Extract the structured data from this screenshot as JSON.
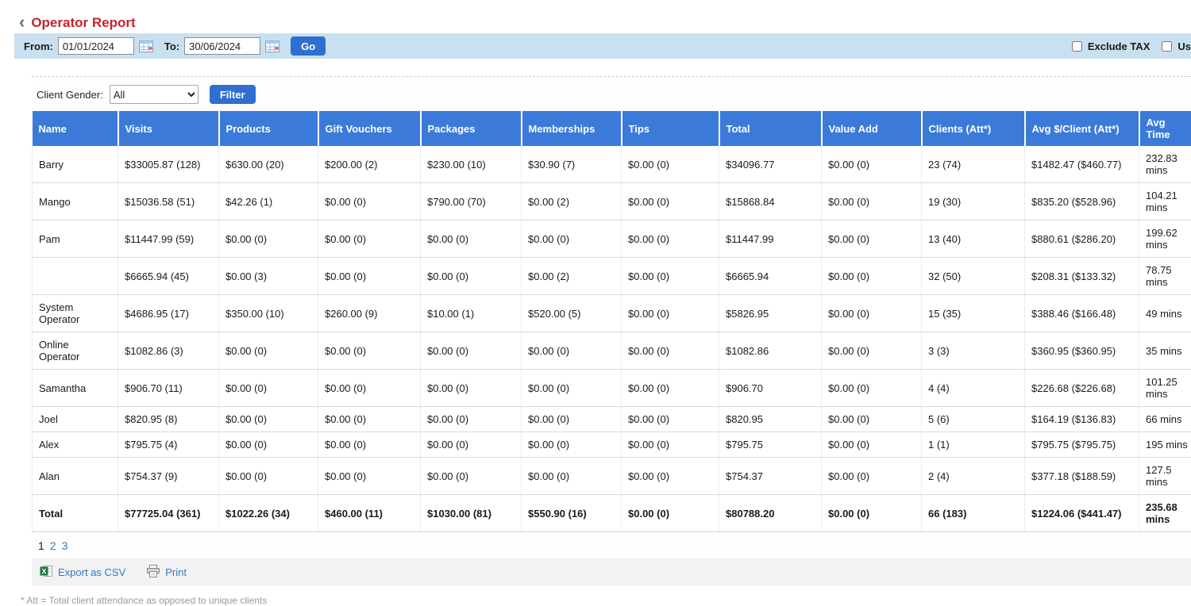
{
  "page": {
    "title": "Operator Report",
    "back_glyph": "‹"
  },
  "toolbar": {
    "from_label": "From:",
    "from_value": "01/01/2024",
    "to_label": "To:",
    "to_value": "30/06/2024",
    "go_label": "Go",
    "exclude_tax_label": "Exclude TAX",
    "partial_checkbox_label": "Us"
  },
  "filter": {
    "client_gender_label": "Client Gender:",
    "client_gender_value": "All",
    "filter_label": "Filter"
  },
  "table": {
    "columns": [
      "Name",
      "Visits",
      "Products",
      "Gift Vouchers",
      "Packages",
      "Memberships",
      "Tips",
      "Total",
      "Value Add",
      "Clients (Att*)",
      "Avg $/Client (Att*)",
      "Avg Time"
    ],
    "rows": [
      [
        "Barry",
        "$33005.87 (128)",
        "$630.00 (20)",
        "$200.00 (2)",
        "$230.00 (10)",
        "$30.90 (7)",
        "$0.00 (0)",
        "$34096.77",
        "$0.00 (0)",
        "23 (74)",
        "$1482.47 ($460.77)",
        "232.83 mins"
      ],
      [
        "Mango",
        "$15036.58 (51)",
        "$42.26 (1)",
        "$0.00 (0)",
        "$790.00 (70)",
        "$0.00 (2)",
        "$0.00 (0)",
        "$15868.84",
        "$0.00 (0)",
        "19 (30)",
        "$835.20 ($528.96)",
        "104.21 mins"
      ],
      [
        "Pam",
        "$11447.99 (59)",
        "$0.00 (0)",
        "$0.00 (0)",
        "$0.00 (0)",
        "$0.00 (0)",
        "$0.00 (0)",
        "$11447.99",
        "$0.00 (0)",
        "13 (40)",
        "$880.61 ($286.20)",
        "199.62 mins"
      ],
      [
        "",
        "$6665.94 (45)",
        "$0.00 (3)",
        "$0.00 (0)",
        "$0.00 (0)",
        "$0.00 (2)",
        "$0.00 (0)",
        "$6665.94",
        "$0.00 (0)",
        "32 (50)",
        "$208.31 ($133.32)",
        "78.75 mins"
      ],
      [
        "System Operator",
        "$4686.95 (17)",
        "$350.00 (10)",
        "$260.00 (9)",
        "$10.00 (1)",
        "$520.00 (5)",
        "$0.00 (0)",
        "$5826.95",
        "$0.00 (0)",
        "15 (35)",
        "$388.46 ($166.48)",
        "49 mins"
      ],
      [
        "Online Operator",
        "$1082.86 (3)",
        "$0.00 (0)",
        "$0.00 (0)",
        "$0.00 (0)",
        "$0.00 (0)",
        "$0.00 (0)",
        "$1082.86",
        "$0.00 (0)",
        "3 (3)",
        "$360.95 ($360.95)",
        "35 mins"
      ],
      [
        "Samantha",
        "$906.70 (11)",
        "$0.00 (0)",
        "$0.00 (0)",
        "$0.00 (0)",
        "$0.00 (0)",
        "$0.00 (0)",
        "$906.70",
        "$0.00 (0)",
        "4 (4)",
        "$226.68 ($226.68)",
        "101.25 mins"
      ],
      [
        "Joel",
        "$820.95 (8)",
        "$0.00 (0)",
        "$0.00 (0)",
        "$0.00 (0)",
        "$0.00 (0)",
        "$0.00 (0)",
        "$820.95",
        "$0.00 (0)",
        "5 (6)",
        "$164.19 ($136.83)",
        "66 mins"
      ],
      [
        "Alex",
        "$795.75 (4)",
        "$0.00 (0)",
        "$0.00 (0)",
        "$0.00 (0)",
        "$0.00 (0)",
        "$0.00 (0)",
        "$795.75",
        "$0.00 (0)",
        "1 (1)",
        "$795.75 ($795.75)",
        "195 mins"
      ],
      [
        "Alan",
        "$754.37 (9)",
        "$0.00 (0)",
        "$0.00 (0)",
        "$0.00 (0)",
        "$0.00 (0)",
        "$0.00 (0)",
        "$754.37",
        "$0.00 (0)",
        "2 (4)",
        "$377.18 ($188.59)",
        "127.5 mins"
      ]
    ],
    "total_row": [
      "Total",
      "$77725.04 (361)",
      "$1022.26 (34)",
      "$460.00 (11)",
      "$1030.00 (81)",
      "$550.90 (16)",
      "$0.00 (0)",
      "$80788.20",
      "$0.00 (0)",
      "66 (183)",
      "$1224.06 ($441.47)",
      "235.68 mins"
    ]
  },
  "pagination": {
    "pages": [
      "1",
      "2",
      "3"
    ],
    "current": "1"
  },
  "footer": {
    "export_csv_label": "Export as CSV",
    "print_label": "Print",
    "note": "* Att = Total client attendance as opposed to unique clients"
  },
  "colors": {
    "title_red": "#c2242b",
    "toolbar_bg": "#c9e0f1",
    "header_bg": "#3b7ad8",
    "button_blue": "#2e6fd0",
    "link_blue": "#3279be",
    "excel_green": "#1e7145"
  }
}
